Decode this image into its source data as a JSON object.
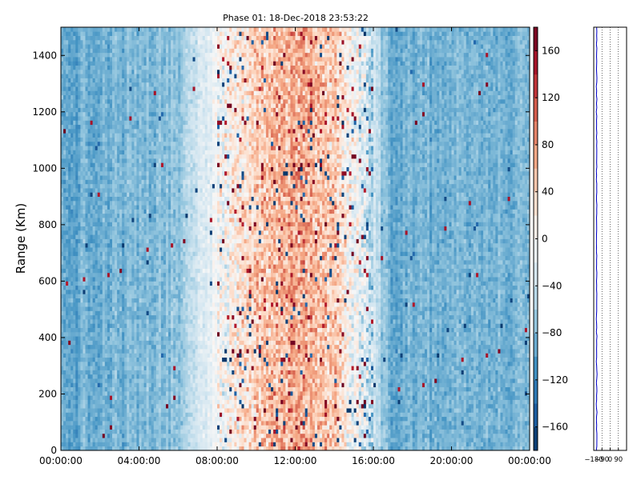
{
  "chart_data": [
    {
      "type": "heatmap",
      "title": "Phase 01: 18-Dec-2018 23:53:22",
      "ylabel": "Range (Km)",
      "xlabel": "",
      "x_tick_labels": [
        "00:00:00",
        "04:00:00",
        "08:00:00",
        "12:00:00",
        "16:00:00",
        "20:00:00",
        "00:00:00"
      ],
      "x_range_hours": [
        0,
        24
      ],
      "y_ticks": [
        0,
        200,
        400,
        600,
        800,
        1000,
        1200,
        1400
      ],
      "ylim": [
        0,
        1500
      ],
      "colormap": "RdBu_r",
      "colorbar": {
        "range": [
          -180,
          180
        ],
        "ticks": [
          -160,
          -120,
          -80,
          -40,
          0,
          40,
          80,
          120,
          160
        ]
      },
      "columns_hours": 0.125,
      "rows_km": 15,
      "phase_profile_by_hour": [
        {
          "hour": 0,
          "phase": -95
        },
        {
          "hour": 6,
          "phase": -75
        },
        {
          "hour": 7,
          "phase": -35
        },
        {
          "hour": 8,
          "phase": -5
        },
        {
          "hour": 10,
          "phase": 45
        },
        {
          "hour": 12,
          "phase": 70
        },
        {
          "hour": 14,
          "phase": 45
        },
        {
          "hour": 16,
          "phase": -45
        },
        {
          "hour": 17,
          "phase": -85
        },
        {
          "hour": 24,
          "phase": -85
        }
      ]
    },
    {
      "type": "line",
      "title": "",
      "xlabel": "",
      "ylabel": "",
      "x_tick_labels": [
        "−180",
        "−90",
        "0",
        "90"
      ],
      "x_ticks": [
        -180,
        -90,
        0,
        90
      ],
      "xlim": [
        -180,
        180
      ],
      "ylim": [
        0,
        1500
      ],
      "series": [
        {
          "color": "#0000cc",
          "mean_phase": -148,
          "range_start": 0,
          "range_end": 1500,
          "range_step": 15
        }
      ]
    }
  ]
}
